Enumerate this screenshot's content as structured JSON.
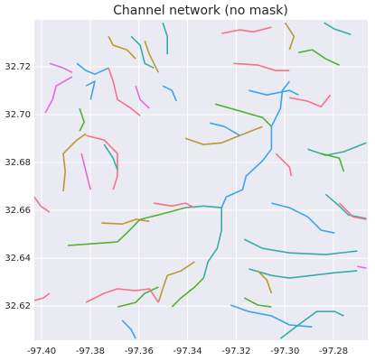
{
  "chart_data": {
    "type": "line",
    "title": "Channel network (no mask)",
    "xlim": [
      -97.403,
      -97.2659
    ],
    "ylim": [
      32.6057,
      32.7396
    ],
    "xticks": [
      {
        "value": -97.4,
        "label": "-97.40"
      },
      -97.38,
      -97.36,
      -97.34,
      -97.32,
      {
        "value": -97.3,
        "label": "-97.30"
      },
      -97.28
    ],
    "yticks": [
      32.62,
      32.64,
      32.66,
      32.68,
      {
        "value": 32.7,
        "label": "32.70"
      },
      32.72
    ],
    "grid": true,
    "background": "#eaeaf2",
    "series": [
      {
        "color": "#50b131",
        "x": [
          -97.3892,
          -97.3799,
          -97.3688,
          -97.365,
          -97.3595,
          -97.352,
          -97.3409
        ],
        "y": [
          32.6453,
          32.646,
          32.6468,
          32.6505,
          32.6562,
          32.6581,
          32.6611
        ]
      },
      {
        "color": "#36ada4",
        "x": [
          -97.3409,
          -97.3334,
          -97.326
        ],
        "y": [
          32.6611,
          32.6618,
          32.6611
        ]
      },
      {
        "color": "#3ba3ec",
        "x": [
          -97.326,
          -97.3241,
          -97.3174,
          -97.3159,
          -97.3092,
          -97.3055,
          -97.3055
        ],
        "y": [
          32.6611,
          32.6656,
          32.6686,
          32.6743,
          32.6807,
          32.6856,
          32.695
        ]
      },
      {
        "color": "#50b131",
        "x": [
          -97.3286,
          -97.3196,
          -97.3092,
          -97.3055
        ],
        "y": [
          32.7044,
          32.7018,
          32.6988,
          32.695
        ]
      },
      {
        "color": "#bb9832",
        "x": [
          -97.3409,
          -97.3334,
          -97.326,
          -97.3185,
          -97.3092
        ],
        "y": [
          32.6901,
          32.6875,
          32.6882,
          32.6913,
          32.695
        ]
      },
      {
        "color": "#3ba3ec",
        "x": [
          -97.3055,
          -97.3018,
          -97.301,
          -97.2981
        ],
        "y": [
          32.695,
          32.7026,
          32.7101,
          32.7139
        ]
      },
      {
        "color": "#3ba3ec",
        "x": [
          -97.3308,
          -97.3249,
          -97.3185
        ],
        "y": [
          32.6965,
          32.695,
          32.6913
        ]
      },
      {
        "color": "#36ada4",
        "x": [
          -97.3167,
          -97.3092,
          -97.2981,
          -97.2832,
          -97.2702
        ],
        "y": [
          32.6479,
          32.6441,
          32.6422,
          32.6415,
          32.643
        ]
      },
      {
        "color": "#36ada4",
        "x": [
          -97.3148,
          -97.3055,
          -97.2981,
          -97.2888,
          -97.2795,
          -97.2702
        ],
        "y": [
          32.6355,
          32.6328,
          32.6317,
          32.6328,
          32.6339,
          32.6347
        ]
      },
      {
        "color": "#3ba3ec",
        "x": [
          -97.3223,
          -97.3148,
          -97.3055,
          -97.2981,
          -97.2888
        ],
        "y": [
          32.6204,
          32.6177,
          32.6159,
          32.6121,
          32.6113
        ]
      },
      {
        "color": "#36ada4",
        "x": [
          -97.3018,
          -97.2944,
          -97.2869,
          -97.2795,
          -97.2758
        ],
        "y": [
          32.6064,
          32.6121,
          32.6177,
          32.6177,
          32.6159
        ]
      },
      {
        "color": "#3ba3ec",
        "x": [
          -97.3055,
          -97.2981,
          -97.2906,
          -97.2851,
          -97.2795
        ],
        "y": [
          32.663,
          32.6611,
          32.6573,
          32.6517,
          32.6505
        ]
      },
      {
        "color": "#36ada4",
        "x": [
          -97.2832,
          -97.2776,
          -97.2739,
          -97.2665
        ],
        "y": [
          32.6667,
          32.6618,
          32.6581,
          32.6566
        ]
      },
      {
        "color": "#f77189",
        "x": [
          -97.2776,
          -97.272,
          -97.2665
        ],
        "y": [
          32.663,
          32.6573,
          32.6562
        ]
      },
      {
        "color": "#36ada4",
        "x": [
          -97.2906,
          -97.2832,
          -97.2758,
          -97.2665
        ],
        "y": [
          32.6856,
          32.683,
          32.6845,
          32.6882
        ]
      },
      {
        "color": "#50b131",
        "x": [
          -97.2851,
          -97.2776,
          -97.2758
        ],
        "y": [
          32.6837,
          32.6818,
          32.6762
        ]
      },
      {
        "color": "#f77189",
        "x": [
          -97.3037,
          -97.2981,
          -97.2973
        ],
        "y": [
          32.6837,
          32.6781,
          32.6743
        ]
      },
      {
        "color": "#f77189",
        "x": [
          -97.3211,
          -97.3111,
          -97.3037,
          -97.2981
        ],
        "y": [
          32.7214,
          32.7207,
          32.7184,
          32.7184
        ]
      },
      {
        "color": "#f77189",
        "x": [
          -97.326,
          -97.3185,
          -97.313,
          -97.3055
        ],
        "y": [
          32.7339,
          32.7354,
          32.7346,
          32.7365
        ]
      },
      {
        "color": "#bb9832",
        "x": [
          -97.2999,
          -97.2962,
          -97.2981
        ],
        "y": [
          32.7384,
          32.7327,
          32.7271
        ]
      },
      {
        "color": "#50b131",
        "x": [
          -97.2944,
          -97.2888,
          -97.2832,
          -97.2776
        ],
        "y": [
          32.7259,
          32.7271,
          32.7233,
          32.7207
        ]
      },
      {
        "color": "#36ada4",
        "x": [
          -97.2839,
          -97.2795,
          -97.2728
        ],
        "y": [
          32.7384,
          32.7357,
          32.7335
        ]
      },
      {
        "color": "#3ba3ec",
        "x": [
          -97.3148,
          -97.3074,
          -97.2981,
          -97.2944
        ],
        "y": [
          32.7101,
          32.7082,
          32.7101,
          32.7082
        ]
      },
      {
        "color": "#f77189",
        "x": [
          -97.2981,
          -97.2906,
          -97.2851,
          -97.2813
        ],
        "y": [
          32.7071,
          32.7056,
          32.7033,
          32.7082
        ]
      },
      {
        "color": "#50b131",
        "x": [
          -97.3688,
          -97.3613,
          -97.3576,
          -97.352
        ],
        "y": [
          32.6196,
          32.6215,
          32.6253,
          32.6279
        ]
      },
      {
        "color": "#f77189",
        "x": [
          -97.3818,
          -97.3743,
          -97.3688,
          -97.3613,
          -97.3557,
          -97.352
        ],
        "y": [
          32.6215,
          32.6253,
          32.6272,
          32.6264,
          32.6272,
          32.6215
        ]
      },
      {
        "color": "#bb9832",
        "x": [
          -97.352,
          -97.3502,
          -97.3483,
          -97.3427,
          -97.3371
        ],
        "y": [
          32.6215,
          32.6272,
          32.6328,
          32.6347,
          32.6385
        ]
      },
      {
        "color": "#50b131",
        "x": [
          -97.3464,
          -97.3427,
          -97.3371,
          -97.3334
        ],
        "y": [
          32.6196,
          32.6234,
          32.6279,
          32.6317
        ]
      },
      {
        "color": "#36ada4",
        "x": [
          -97.3334,
          -97.3316,
          -97.3278,
          -97.326,
          -97.326
        ],
        "y": [
          32.6317,
          32.6385,
          32.6441,
          32.6517,
          32.6611
        ]
      },
      {
        "color": "#bb9832",
        "x": [
          -97.3754,
          -97.3669,
          -97.3613,
          -97.3557
        ],
        "y": [
          32.6547,
          32.6543,
          32.6562,
          32.6554
        ]
      },
      {
        "color": "#f77189",
        "x": [
          -97.3539,
          -97.3464,
          -97.3409,
          -97.3371
        ],
        "y": [
          32.663,
          32.6618,
          32.663,
          32.6611
        ]
      },
      {
        "color": "#bb9832",
        "x": [
          -97.3911,
          -97.3903,
          -97.3911,
          -97.3855,
          -97.3818
        ],
        "y": [
          32.6679,
          32.6762,
          32.6837,
          32.6894,
          32.692
        ]
      },
      {
        "color": "#f77189",
        "x": [
          -97.3818,
          -97.3743,
          -97.3688,
          -97.3688,
          -97.3706
        ],
        "y": [
          32.6913,
          32.6894,
          32.6837,
          32.6743,
          32.6686
        ]
      },
      {
        "color": "#36ada4",
        "x": [
          -97.3743,
          -97.3706,
          -97.3688
        ],
        "y": [
          32.6875,
          32.6818,
          32.6769
        ]
      },
      {
        "color": "#e866e0",
        "x": [
          -97.3836,
          -97.3818,
          -97.3799
        ],
        "y": [
          32.6837,
          32.6762,
          32.6686
        ]
      },
      {
        "color": "#e866e0",
        "x": [
          -97.3985,
          -97.3955,
          -97.394,
          -97.3874
        ],
        "y": [
          32.7007,
          32.7063,
          32.712,
          32.7158
        ]
      },
      {
        "color": "#3ba3ec",
        "x": [
          -97.3855,
          -97.3818,
          -97.3781,
          -97.3725
        ],
        "y": [
          32.7214,
          32.7184,
          32.7169,
          32.7195
        ]
      },
      {
        "color": "#50b131",
        "x": [
          -97.3844,
          -97.3825,
          -97.3844
        ],
        "y": [
          32.7026,
          32.6969,
          32.6931
        ]
      },
      {
        "color": "#e866e0",
        "x": [
          -97.3967,
          -97.3911,
          -97.3874
        ],
        "y": [
          32.7214,
          32.7195,
          32.7176
        ]
      },
      {
        "color": "#3ba3ec",
        "x": [
          -97.3818,
          -97.3781,
          -97.3799
        ],
        "y": [
          32.712,
          32.7139,
          32.7063
        ]
      },
      {
        "color": "#bb9832",
        "x": [
          -97.3725,
          -97.3706,
          -97.365,
          -97.3613
        ],
        "y": [
          32.7327,
          32.729,
          32.7271,
          32.7233
        ]
      },
      {
        "color": "#36ada4",
        "x": [
          -97.3632,
          -97.3595,
          -97.3576,
          -97.3539
        ],
        "y": [
          32.7327,
          32.729,
          32.7214,
          32.7195
        ]
      },
      {
        "color": "#bb9832",
        "x": [
          -97.3576,
          -97.3557,
          -97.352
        ],
        "y": [
          32.7308,
          32.7252,
          32.7176
        ]
      },
      {
        "color": "#36ada4",
        "x": [
          -97.3502,
          -97.3483,
          -97.3483
        ],
        "y": [
          32.7384,
          32.7327,
          32.7252
        ]
      },
      {
        "color": "#f77189",
        "x": [
          -97.3725,
          -97.3706,
          -97.3688,
          -97.3632,
          -97.3595
        ],
        "y": [
          32.7195,
          32.7139,
          32.7063,
          32.7026,
          32.6995
        ]
      },
      {
        "color": "#e866e0",
        "x": [
          -97.3613,
          -97.3595,
          -97.3557
        ],
        "y": [
          32.712,
          32.7063,
          32.7026
        ]
      },
      {
        "color": "#3ba3ec",
        "x": [
          -97.3502,
          -97.3464,
          -97.3446
        ],
        "y": [
          32.712,
          32.7101,
          32.7056
        ]
      },
      {
        "color": "#f77189",
        "x": [
          -97.403,
          -97.4004,
          -97.3967
        ],
        "y": [
          32.6656,
          32.6618,
          32.6592
        ]
      },
      {
        "color": "#f77189",
        "x": [
          -97.403,
          -97.3993,
          -97.3967
        ],
        "y": [
          32.6223,
          32.6234,
          32.6253
        ]
      },
      {
        "color": "#3ba3ec",
        "x": [
          -97.3669,
          -97.3632,
          -97.3613
        ],
        "y": [
          32.614,
          32.6102,
          32.6064
        ]
      },
      {
        "color": "#50b131",
        "x": [
          -97.3167,
          -97.3111,
          -97.3055
        ],
        "y": [
          32.6234,
          32.6204,
          32.6196
        ]
      },
      {
        "color": "#bb9832",
        "x": [
          -97.3111,
          -97.3074,
          -97.3055
        ],
        "y": [
          32.6347,
          32.6309,
          32.6253
        ]
      },
      {
        "color": "#e866e0",
        "x": [
          -97.2702,
          -97.2665
        ],
        "y": [
          32.6366,
          32.6358
        ]
      }
    ]
  }
}
